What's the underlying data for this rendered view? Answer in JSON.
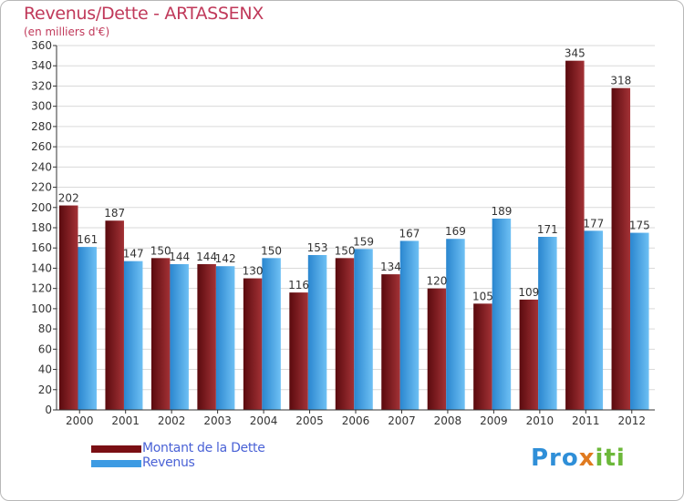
{
  "title": "Revenus/Dette - ARTASSENX",
  "subtitle": "(en milliers d'€)",
  "legend": [
    {
      "label": "Montant de la Dette",
      "color": "#7a0f14"
    },
    {
      "label": "Revenus",
      "color": "#3d9be3"
    }
  ],
  "logo": {
    "part1": "Pro",
    "part2": "x",
    "part3": "iti"
  },
  "colors": {
    "dette_dark": "#5a0a0e",
    "dette_light": "#a33236",
    "revenus_dark": "#2a86cf",
    "revenus_light": "#6ec0f4",
    "grid": "#d9d9d9",
    "axis": "#333333"
  },
  "chart_data": {
    "type": "bar",
    "categories": [
      "2000",
      "2001",
      "2002",
      "2003",
      "2004",
      "2005",
      "2006",
      "2007",
      "2008",
      "2009",
      "2010",
      "2011",
      "2012"
    ],
    "series": [
      {
        "name": "Montant de la Dette",
        "values": [
          202,
          187,
          150,
          144,
          130,
          116,
          150,
          134,
          120,
          105,
          109,
          345,
          318
        ]
      },
      {
        "name": "Revenus",
        "values": [
          161,
          147,
          144,
          142,
          150,
          153,
          159,
          167,
          169,
          189,
          171,
          177,
          175
        ]
      }
    ],
    "ylim": [
      0,
      360
    ],
    "ytick_step": 20,
    "grid": true
  }
}
